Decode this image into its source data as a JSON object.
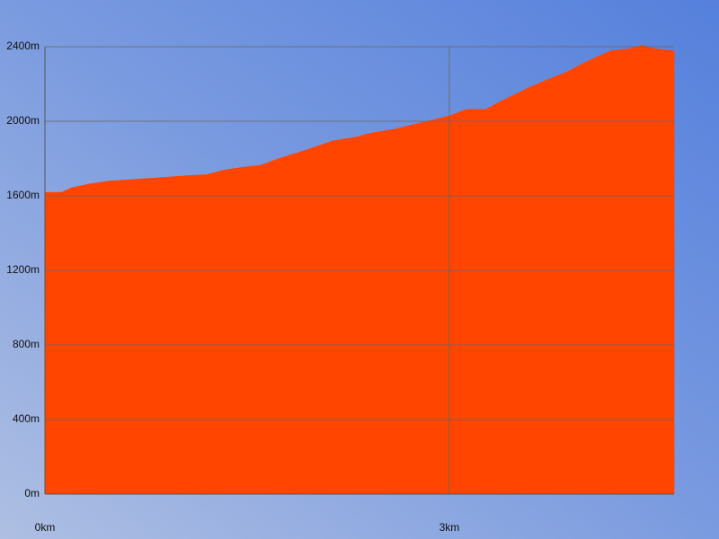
{
  "chart_data": {
    "type": "area",
    "color": "#ff4500",
    "grid": true,
    "x": [
      0,
      0.12,
      0.2,
      0.33,
      0.47,
      0.67,
      0.87,
      1.07,
      1.2,
      1.33,
      1.47,
      1.6,
      1.73,
      1.93,
      2.13,
      2.33,
      2.4,
      2.6,
      2.8,
      3.0,
      3.13,
      3.27,
      3.4,
      3.6,
      3.73,
      3.87,
      4.0,
      4.2,
      4.33,
      4.43,
      4.53,
      4.67
    ],
    "values": [
      1620,
      1620,
      1645,
      1665,
      1680,
      1690,
      1700,
      1710,
      1715,
      1740,
      1755,
      1765,
      1800,
      1845,
      1895,
      1920,
      1935,
      1960,
      1995,
      2030,
      2065,
      2065,
      2115,
      2185,
      2225,
      2265,
      2315,
      2380,
      2390,
      2410,
      2390,
      2380
    ],
    "xlim": [
      0,
      4.667
    ],
    "xticks": [
      {
        "value": 0,
        "label": "0km"
      },
      {
        "value": 3,
        "label": "3km"
      }
    ],
    "ylim": [
      0,
      2400
    ],
    "yticks": [
      {
        "value": 0,
        "label": "0m"
      },
      {
        "value": 400,
        "label": "400m"
      },
      {
        "value": 800,
        "label": "800m"
      },
      {
        "value": 1200,
        "label": "1200m"
      },
      {
        "value": 1600,
        "label": "1600m"
      },
      {
        "value": 2000,
        "label": "2000m"
      },
      {
        "value": 2400,
        "label": "2400m"
      }
    ]
  }
}
